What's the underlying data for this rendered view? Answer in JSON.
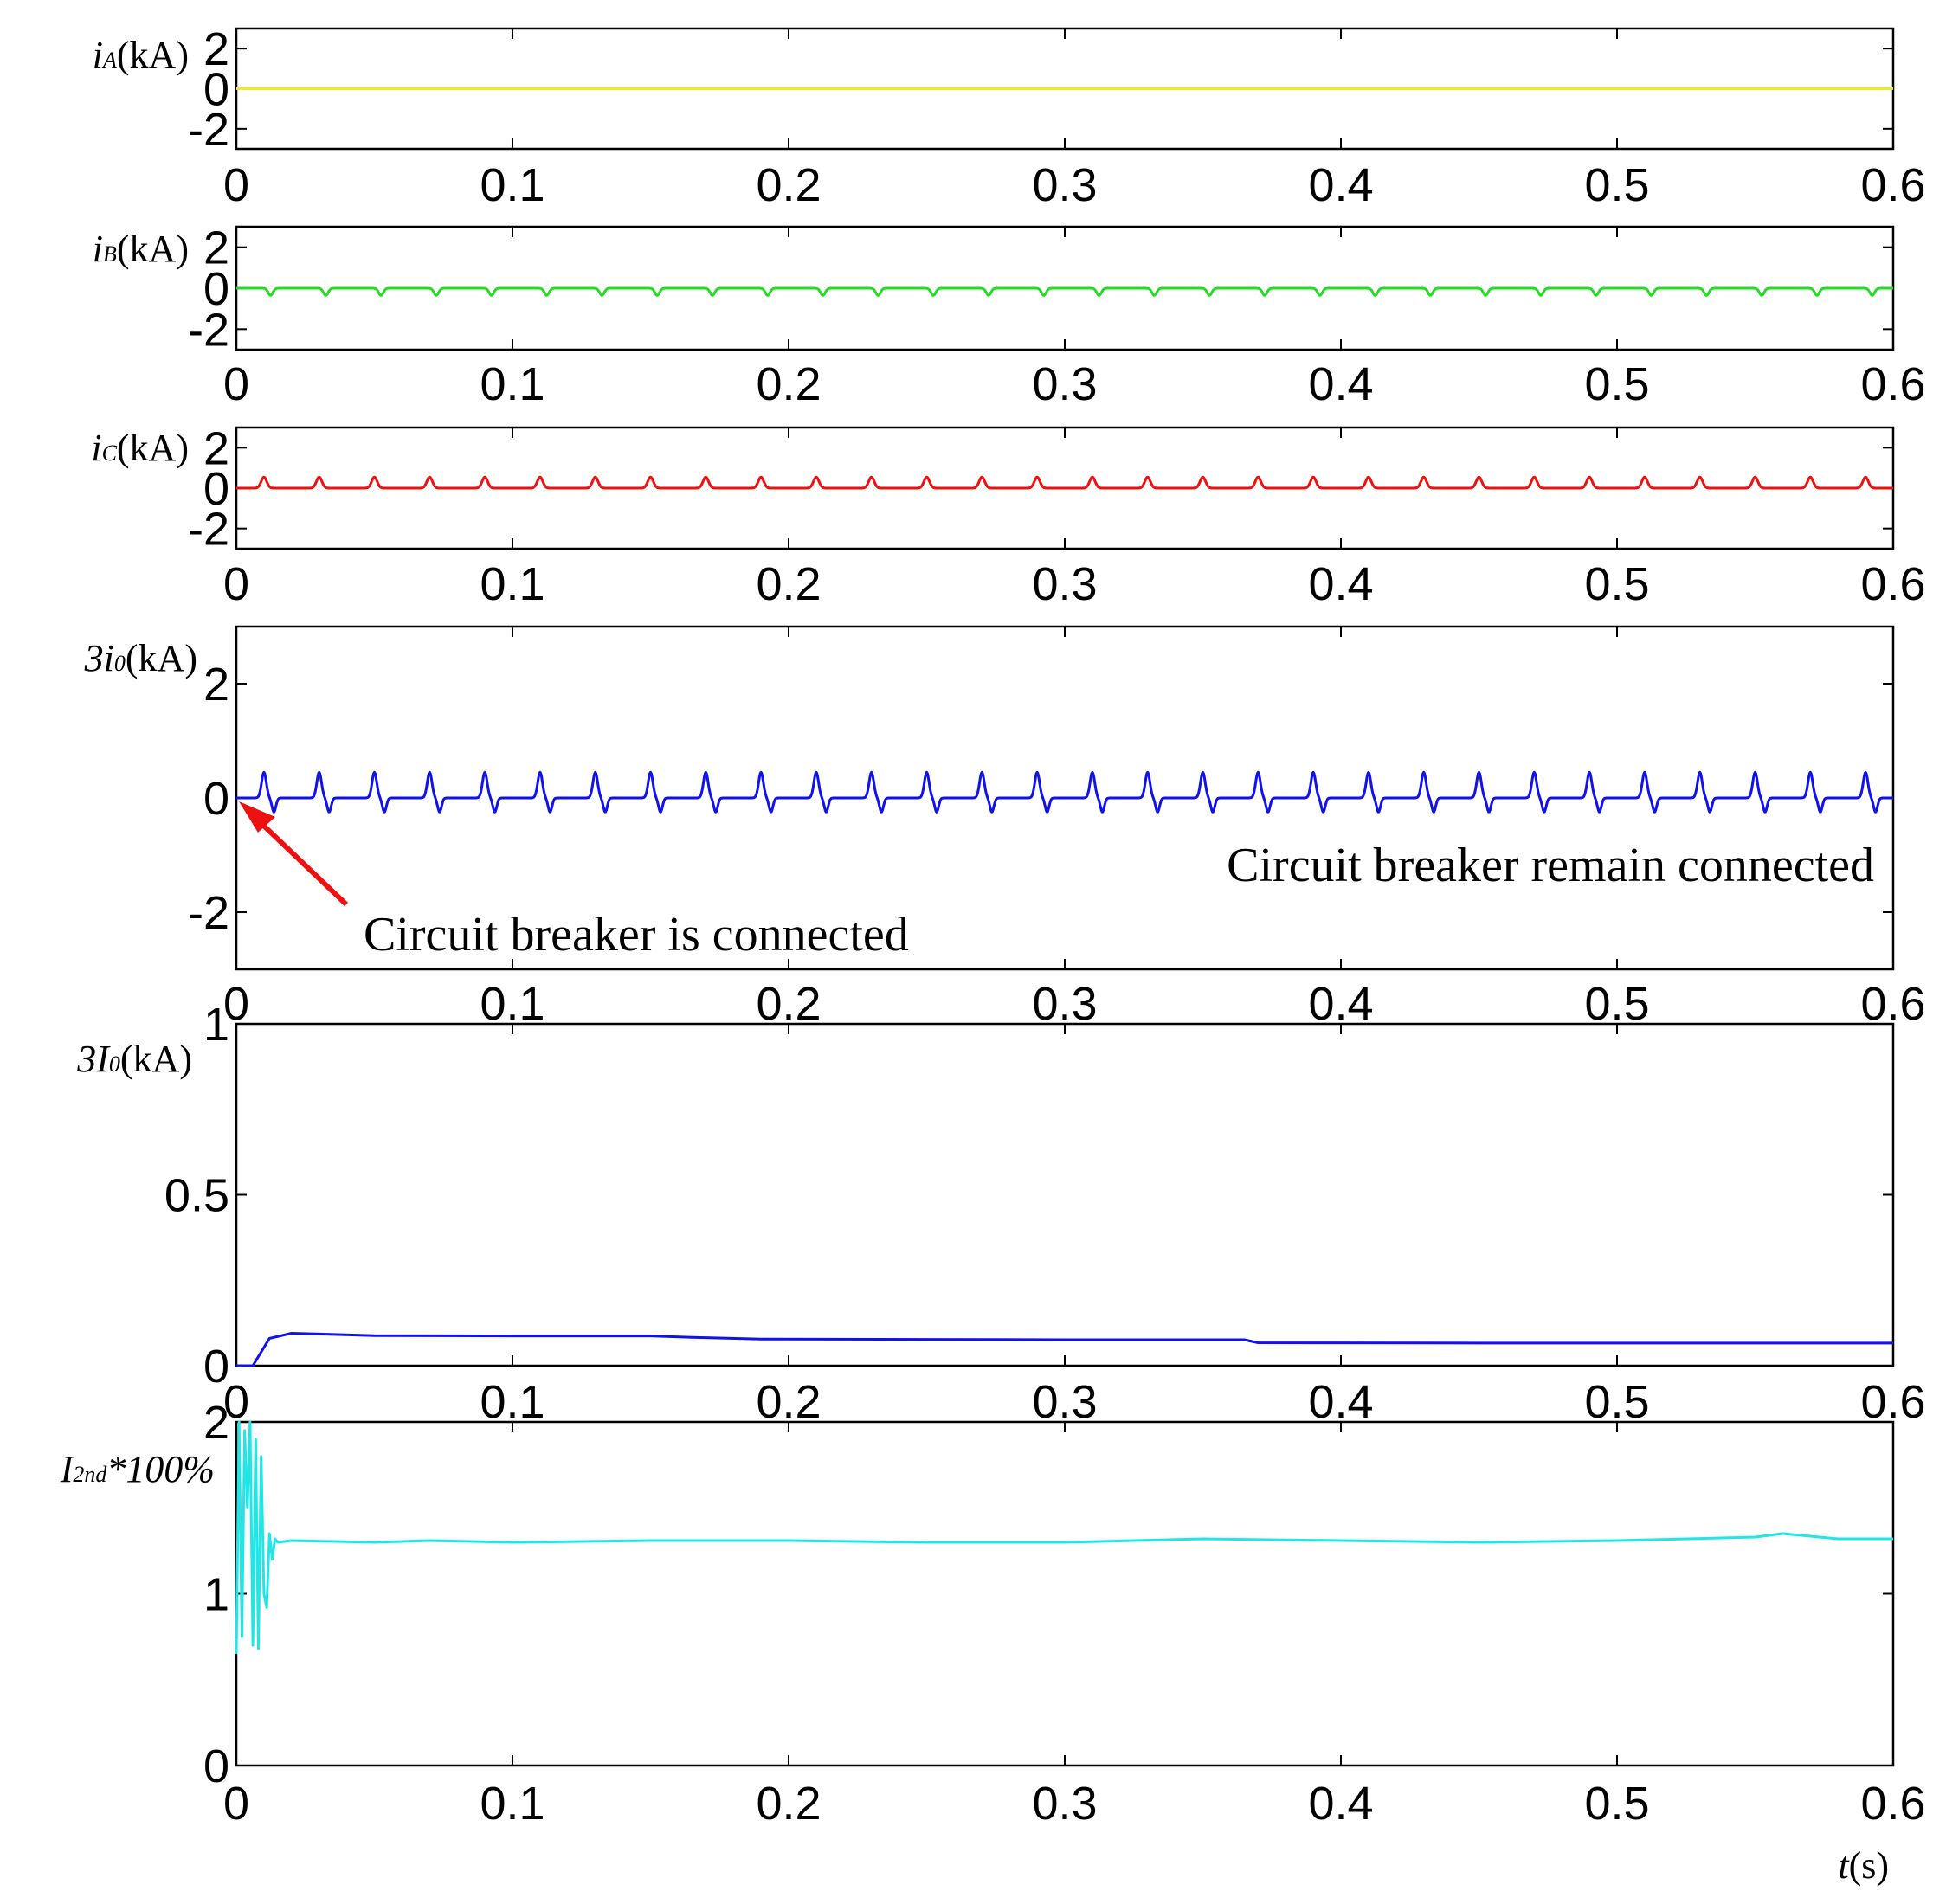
{
  "chart_data": [
    {
      "type": "line",
      "id": "ia",
      "ylabel_parts": [
        "i",
        "A",
        "(kA)"
      ],
      "xlim": [
        0,
        0.6
      ],
      "ylim": [
        -3,
        3
      ],
      "xticks": [
        "0",
        "0.1",
        "0.2",
        "0.3",
        "0.4",
        "0.5",
        "0.6"
      ],
      "yticks": [
        "2",
        "0",
        "-2"
      ],
      "ytick_values": [
        2,
        0,
        -2
      ],
      "color": "#f2ea1a",
      "series": [
        {
          "waveform": "flat",
          "baseline": 0,
          "amplitude": 0,
          "period": 0.02
        }
      ]
    },
    {
      "type": "line",
      "id": "ib",
      "ylabel_parts": [
        "i",
        "B",
        "(kA)"
      ],
      "xlim": [
        0,
        0.6
      ],
      "ylim": [
        -3,
        3
      ],
      "xticks": [
        "0",
        "0.1",
        "0.2",
        "0.3",
        "0.4",
        "0.5",
        "0.6"
      ],
      "yticks": [
        "2",
        "0",
        "-2"
      ],
      "ytick_values": [
        2,
        0,
        -2
      ],
      "color": "#22dd22",
      "series": [
        {
          "waveform": "dips",
          "baseline": 0,
          "amplitude": -0.35,
          "period": 0.02
        }
      ]
    },
    {
      "type": "line",
      "id": "ic",
      "ylabel_parts": [
        "i",
        "C",
        "(kA)"
      ],
      "xlim": [
        0,
        0.6
      ],
      "ylim": [
        -3,
        3
      ],
      "xticks": [
        "0",
        "0.1",
        "0.2",
        "0.3",
        "0.4",
        "0.5",
        "0.6"
      ],
      "yticks": [
        "2",
        "0",
        "-2"
      ],
      "ytick_values": [
        2,
        0,
        -2
      ],
      "color": "#ee1111",
      "series": [
        {
          "waveform": "peaks",
          "baseline": 0,
          "amplitude": 0.55,
          "period": 0.02
        }
      ]
    },
    {
      "type": "line",
      "id": "3i0",
      "ylabel_parts": [
        "3i",
        "0",
        "(kA)"
      ],
      "xlim": [
        0,
        0.6
      ],
      "ylim": [
        -3,
        3
      ],
      "xticks": [
        "0",
        "0.1",
        "0.2",
        "0.3",
        "0.4",
        "0.5",
        "0.6"
      ],
      "yticks": [
        "2",
        "0",
        "-2"
      ],
      "ytick_values": [
        2,
        0,
        -2
      ],
      "color": "#1111ee",
      "series": [
        {
          "waveform": "bipolar",
          "baseline": 0,
          "amplitude": 0.45,
          "period": 0.02
        }
      ],
      "annotations": [
        {
          "text": "Circuit breaker is connected",
          "x": 0.0,
          "y": 0
        },
        {
          "text": "Circuit breaker remain connected"
        }
      ]
    },
    {
      "type": "line",
      "id": "3I0",
      "ylabel_parts": [
        "3I",
        "0",
        "(kA)"
      ],
      "xlim": [
        0,
        0.6
      ],
      "ylim": [
        0,
        1
      ],
      "xticks": [
        "0",
        "0.1",
        "0.2",
        "0.3",
        "0.4",
        "0.5",
        "0.6"
      ],
      "yticks": [
        "1",
        "0.5",
        "0"
      ],
      "ytick_values": [
        1,
        0.5,
        0
      ],
      "color": "#1111ee",
      "series": [
        {
          "x": [
            0,
            0.006,
            0.012,
            0.02,
            0.05,
            0.1,
            0.15,
            0.165,
            0.17,
            0.19,
            0.25,
            0.3,
            0.365,
            0.37,
            0.45,
            0.55,
            0.6
          ],
          "y": [
            0,
            0,
            0.08,
            0.095,
            0.088,
            0.087,
            0.087,
            0.083,
            0.082,
            0.078,
            0.077,
            0.076,
            0.076,
            0.067,
            0.066,
            0.066,
            0.066
          ]
        }
      ]
    },
    {
      "type": "line",
      "id": "i2nd",
      "ylabel_parts": [
        "I",
        "2nd",
        "*100%"
      ],
      "xlabel_parts": [
        "t",
        "(s)"
      ],
      "xlim": [
        0,
        0.6
      ],
      "ylim": [
        0,
        2
      ],
      "xticks": [
        "0",
        "0.1",
        "0.2",
        "0.3",
        "0.4",
        "0.5",
        "0.6"
      ],
      "yticks": [
        "2",
        "1",
        "0"
      ],
      "ytick_values": [
        2,
        1,
        0
      ],
      "color": "#22e6e6",
      "series": [
        {
          "x": [
            0,
            0.001,
            0.002,
            0.003,
            0.004,
            0.005,
            0.006,
            0.007,
            0.008,
            0.009,
            0.01,
            0.011,
            0.012,
            0.013,
            0.014,
            0.015,
            0.02,
            0.05,
            0.07,
            0.1,
            0.15,
            0.2,
            0.25,
            0.3,
            0.35,
            0.4,
            0.45,
            0.5,
            0.55,
            0.56,
            0.58,
            0.6
          ],
          "y": [
            0.65,
            2.0,
            0.75,
            1.95,
            1.5,
            2.0,
            0.7,
            1.9,
            0.68,
            1.8,
            1.0,
            0.92,
            1.35,
            1.2,
            1.32,
            1.3,
            1.31,
            1.3,
            1.31,
            1.3,
            1.31,
            1.31,
            1.3,
            1.3,
            1.32,
            1.31,
            1.3,
            1.31,
            1.33,
            1.35,
            1.32,
            1.32
          ]
        }
      ]
    }
  ]
}
